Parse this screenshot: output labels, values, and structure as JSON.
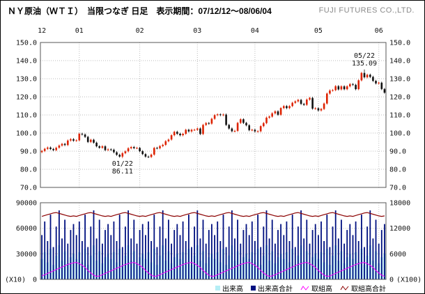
{
  "header": {
    "title": "ＮＹ原油（ＷＴＩ）　当限つなぎ 日足　表示期間：07/12/12～08/06/04",
    "company": "FUJI FUTURES CO.,LTD."
  },
  "chart_data": {
    "type": "candlestick",
    "title": "ＮＹ原油（ＷＴＩ）　当限つなぎ 日足",
    "period": "07/12/12～08/06/04",
    "price_panel": {
      "ylim": [
        70,
        150
      ],
      "y_ticks": [
        "150.0",
        "140.0",
        "130.0",
        "120.0",
        "110.0",
        "100.0",
        "90.0",
        "80.0",
        "70.0"
      ],
      "month_labels": [
        {
          "label": "12",
          "index": 0
        },
        {
          "label": "01",
          "index": 13
        },
        {
          "label": "02",
          "index": 34
        },
        {
          "label": "03",
          "index": 54
        },
        {
          "label": "04",
          "index": 74
        },
        {
          "label": "05",
          "index": 96
        },
        {
          "label": "06",
          "index": 117
        }
      ],
      "first_open": 89.5,
      "wick": 0.6,
      "closes": [
        90.1,
        91.3,
        92.0,
        91.2,
        90.6,
        91.9,
        93.1,
        94.0,
        93.4,
        95.9,
        96.6,
        95.8,
        96.0,
        99.6,
        99.2,
        97.9,
        95.1,
        96.3,
        94.7,
        92.7,
        91.9,
        92.7,
        90.6,
        91.0,
        90.8,
        89.4,
        88.0,
        87.0,
        88.9,
        89.9,
        91.6,
        92.3,
        91.7,
        91.8,
        90.0,
        88.4,
        87.0,
        86.8,
        88.1,
        91.8,
        91.6,
        92.8,
        93.5,
        95.5,
        96.4,
        98.8,
        100.7,
        99.6,
        98.8,
        99.6,
        101.8,
        100.9,
        101.8,
        101.8,
        102.5,
        99.5,
        104.5,
        105.5,
        105.2,
        107.9,
        109.9,
        110.3,
        109.9,
        110.2,
        104.5,
        102.5,
        101.0,
        101.2,
        105.6,
        107.6,
        105.6,
        104.3,
        101.6,
        101.8,
        100.9,
        101.0,
        103.8,
        105.5,
        108.5,
        109.1,
        110.9,
        112.0,
        110.1,
        113.8,
        114.9,
        113.8,
        114.9,
        116.7,
        117.5,
        118.3,
        116.1,
        115.6,
        118.5,
        119.4,
        113.5,
        113.7,
        112.5,
        113.3,
        116.3,
        121.8,
        123.5,
        123.7,
        125.9,
        124.1,
        125.8,
        124.2,
        125.8,
        127.0,
        126.6,
        124.2,
        129.1,
        133.2,
        130.8,
        132.2,
        131.0,
        128.8,
        127.4,
        127.8,
        124.3,
        122.3
      ],
      "overrides": {
        "low": {
          "index": 28,
          "value": 86.11
        },
        "high": {
          "index": 112,
          "value": 135.09
        }
      },
      "annotations": [
        {
          "index": 28,
          "lines": [
            "01/22",
            "86.11"
          ],
          "position": "below"
        },
        {
          "index": 112,
          "lines": [
            "05/22",
            "135.09"
          ],
          "position": "above"
        }
      ],
      "up_color": "#dd2200",
      "down_color": "#111111"
    },
    "volume_panel": {
      "left_max": 90000,
      "left_ticks": [
        "90000",
        "60000",
        "30000",
        "0"
      ],
      "left_unit": "(X10)",
      "right_max": 18000,
      "right_ticks": [
        "18000",
        "12000",
        "6000",
        "0"
      ],
      "right_unit": "(X100)",
      "volume": {
        "pattern": [
          24000,
          32000,
          20000,
          36000,
          17000,
          28000,
          40000,
          22000,
          33000,
          19000,
          26000,
          30000
        ],
        "repeat": 10
      },
      "volume_total": {
        "pattern": [
          52000,
          68000,
          45000,
          76000,
          38000,
          62000,
          81000,
          48000,
          70000,
          42000,
          58000,
          65000
        ],
        "repeat": 10
      },
      "open_interest": {
        "pattern": [
          800,
          1100,
          1400,
          1700,
          2000,
          2300,
          2600,
          2900,
          3200,
          3500,
          3700,
          3900,
          4000,
          3700,
          3300,
          2800,
          2100,
          1500,
          1000,
          700
        ],
        "repeat": 6
      },
      "open_interest_total": {
        "pattern": [
          14800,
          15000,
          15200,
          15400,
          15600,
          15700,
          15500,
          15300,
          15100,
          14900,
          14800,
          14900
        ],
        "repeat": 10
      },
      "colors": {
        "volume": "#b5eef5",
        "volume_total": "#001080",
        "open_interest": "#ff00ff",
        "open_interest_total": "#8b0000"
      }
    },
    "legend": [
      {
        "label": "出来高",
        "color": "#b5eef5",
        "marker": "bar"
      },
      {
        "label": "出来高合計",
        "color": "#001080",
        "marker": "bar"
      },
      {
        "label": "取組高",
        "color": "#ff00ff",
        "marker": "line"
      },
      {
        "label": "取組高合計",
        "color": "#8b0000",
        "marker": "line"
      }
    ]
  }
}
